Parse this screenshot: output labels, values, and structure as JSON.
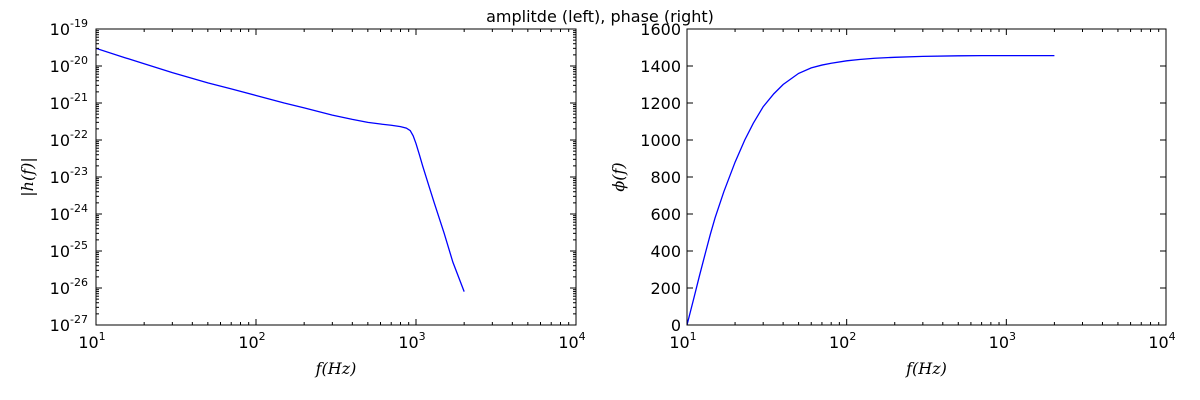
{
  "title": "amplitde (left), phase (right)",
  "chart_data": [
    {
      "type": "line",
      "name": "amplitude",
      "xlabel": "f(Hz)",
      "ylabel": "|h(f)|",
      "xscale": "log",
      "yscale": "log",
      "xlim": [
        10,
        10000
      ],
      "ylim": [
        1e-27,
        1e-19
      ],
      "xticks": [
        10,
        100,
        1000,
        10000
      ],
      "xtick_labels": [
        {
          "base": "10",
          "exp": "1"
        },
        {
          "base": "10",
          "exp": "2"
        },
        {
          "base": "10",
          "exp": "3"
        },
        {
          "base": "10",
          "exp": "4"
        }
      ],
      "yticks": [
        1e-27,
        1e-26,
        1e-25,
        1e-24,
        1e-23,
        1e-22,
        1e-21,
        1e-20,
        1e-19
      ],
      "ytick_labels": [
        {
          "base": "10",
          "exp": "-27"
        },
        {
          "base": "10",
          "exp": "-26"
        },
        {
          "base": "10",
          "exp": "-25"
        },
        {
          "base": "10",
          "exp": "-24"
        },
        {
          "base": "10",
          "exp": "-23"
        },
        {
          "base": "10",
          "exp": "-22"
        },
        {
          "base": "10",
          "exp": "-21"
        },
        {
          "base": "10",
          "exp": "-20"
        },
        {
          "base": "10",
          "exp": "-19"
        }
      ],
      "series": [
        {
          "color": "#0000ff",
          "x": [
            10,
            15,
            20,
            30,
            50,
            70,
            100,
            150,
            200,
            300,
            400,
            500,
            600,
            700,
            800,
            870,
            920,
            960,
            1000,
            1050,
            1100,
            1200,
            1300,
            1500,
            1700,
            2000
          ],
          "y": [
            3e-20,
            1.7e-20,
            1.15e-20,
            6.6e-21,
            3.5e-21,
            2.4e-21,
            1.6e-21,
            1e-21,
            7.4e-22,
            4.7e-22,
            3.6e-22,
            3e-22,
            2.7e-22,
            2.5e-22,
            2.3e-22,
            2.1e-22,
            1.8e-22,
            1.3e-22,
            8e-23,
            4e-23,
            2e-23,
            6e-24,
            2e-24,
            3e-25,
            5e-26,
            8e-27
          ]
        }
      ]
    },
    {
      "type": "line",
      "name": "phase",
      "xlabel": "f(Hz)",
      "ylabel": "ϕ(f)",
      "xscale": "log",
      "yscale": "linear",
      "xlim": [
        10,
        10000
      ],
      "ylim": [
        0,
        1600
      ],
      "xticks": [
        10,
        100,
        1000,
        10000
      ],
      "xtick_labels": [
        {
          "base": "10",
          "exp": "1"
        },
        {
          "base": "10",
          "exp": "2"
        },
        {
          "base": "10",
          "exp": "3"
        },
        {
          "base": "10",
          "exp": "4"
        }
      ],
      "yticks": [
        0,
        200,
        400,
        600,
        800,
        1000,
        1200,
        1400,
        1600
      ],
      "ytick_labels": [
        "0",
        "200",
        "400",
        "600",
        "800",
        "1000",
        "1200",
        "1400",
        "1600"
      ],
      "series": [
        {
          "color": "#0000ff",
          "x": [
            10,
            11,
            12,
            13,
            14,
            15,
            17,
            20,
            23,
            26,
            30,
            35,
            40,
            50,
            60,
            70,
            80,
            100,
            120,
            150,
            200,
            300,
            500,
            700,
            1000,
            1500,
            2000
          ],
          "y": [
            0,
            140,
            270,
            385,
            490,
            580,
            720,
            880,
            1000,
            1090,
            1180,
            1250,
            1300,
            1360,
            1390,
            1405,
            1415,
            1428,
            1435,
            1442,
            1447,
            1452,
            1455,
            1456,
            1456,
            1456,
            1456
          ]
        }
      ]
    }
  ]
}
